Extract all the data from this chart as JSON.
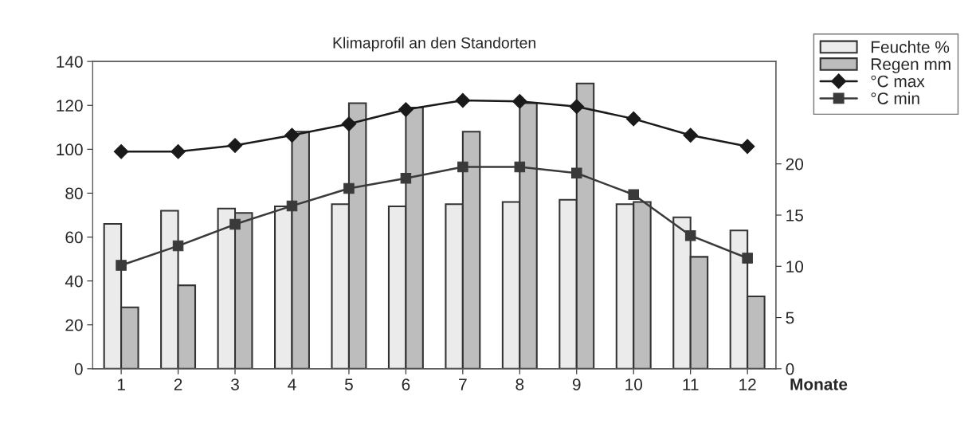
{
  "chart_data": {
    "type": "bar",
    "title": "Klimaprofil an den Standorten",
    "xlabel": "Monate",
    "categories": [
      "1",
      "2",
      "3",
      "4",
      "5",
      "6",
      "7",
      "8",
      "9",
      "10",
      "11",
      "12"
    ],
    "series": [
      {
        "name": "Feuchte %",
        "color": "#ebebeb",
        "values": [
          66,
          72,
          73,
          74,
          75,
          74,
          75,
          76,
          77,
          75,
          69,
          63
        ]
      },
      {
        "name": "Regen mm",
        "color": "#bdbdbd",
        "values": [
          28,
          38,
          71,
          108,
          121,
          119,
          108,
          121,
          130,
          76,
          51,
          33
        ]
      },
      {
        "name": "°C max",
        "type": "line",
        "axis": "y2",
        "marker": "diamond",
        "color": "#1a1a1a",
        "values": [
          21.2,
          21.2,
          21.8,
          22.8,
          23.9,
          25.3,
          26.2,
          26.1,
          25.6,
          24.4,
          22.8,
          21.7
        ]
      },
      {
        "name": "°C min",
        "type": "line",
        "axis": "y2",
        "marker": "square",
        "color": "#3a3a3a",
        "values": [
          10.1,
          12.0,
          14.1,
          15.9,
          17.6,
          18.6,
          19.7,
          19.7,
          19.1,
          17.0,
          13.0,
          10.8
        ]
      }
    ],
    "ylim": [
      0,
      140
    ],
    "yticks": [
      0,
      20,
      40,
      60,
      80,
      100,
      120,
      140
    ],
    "y2lim": [
      0,
      30
    ],
    "y2ticks": [
      0,
      5,
      10,
      15,
      20
    ],
    "grid": false,
    "legend": "top right",
    "line_style": "solid"
  }
}
